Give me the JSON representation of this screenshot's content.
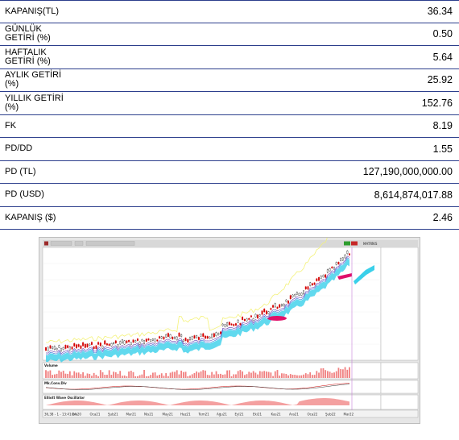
{
  "metrics": [
    {
      "label": "KAPANIŞ(TL)",
      "value": "36.34"
    },
    {
      "label": "GÜNLÜK\nGETİRİ (%)",
      "value": "0.50"
    },
    {
      "label": "HAFTALIK\nGETİRİ (%)",
      "value": "5.64"
    },
    {
      "label": "AYLIK GETİRİ\n(%)",
      "value": "25.92"
    },
    {
      "label": "YILLIK GETİRİ\n(%)",
      "value": "152.76"
    },
    {
      "label": "FK",
      "value": "8.19"
    },
    {
      "label": "PD/DD",
      "value": "1.55"
    },
    {
      "label": "PD (TL)",
      "value": "127,190,000,000.00"
    },
    {
      "label": "PD (USD)",
      "value": "8,614,874,017.88"
    },
    {
      "label": "KAPANIŞ ($)",
      "value": "2.46"
    }
  ],
  "chart": {
    "toolbar_right": "MATRİKS",
    "pane_volume": "Volume",
    "pane_macd": "Mk.Conv.Div",
    "pane_elliott": "Elliott Wave Oscillator",
    "status": "36,38 - 1 - 13:41:24",
    "x_ticks": [
      "Ara20",
      "Oca21",
      "Şub21",
      "Mar21",
      "Nis21",
      "May21",
      "Haz21",
      "Tem21",
      "Ağu21",
      "Eyl21",
      "Eki21",
      "Kas21",
      "Ara21",
      "Oca22",
      "Şub22",
      "Mar22"
    ],
    "colors": {
      "up": "#d40000",
      "down": "#000000",
      "cloud": "#3ad0ea",
      "magenta": "#e0106a",
      "yellow": "#f4f27a",
      "purple": "#6a3fb5",
      "volume": "#f08080"
    }
  }
}
